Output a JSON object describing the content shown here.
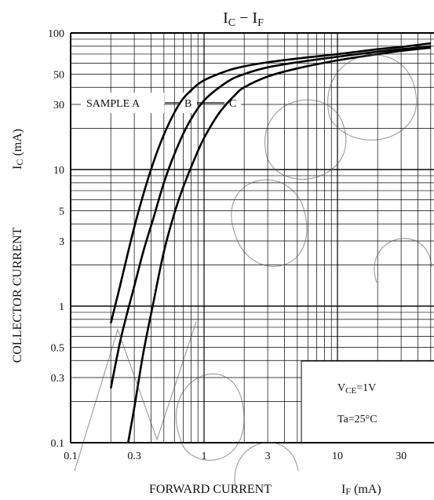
{
  "chart_data": {
    "type": "line",
    "title": "IC − IF",
    "title_parts": {
      "main1": "I",
      "sub1": "C",
      "sep": " − ",
      "main2": "I",
      "sub2": "F"
    },
    "xlabel": "FORWARD CURRENT",
    "xlabel_symbol": "I",
    "xlabel_sub": "F",
    "xlabel_unit": " (mA)",
    "ylabel": "COLLECTOR CURRENT",
    "ylabel_symbol": "I",
    "ylabel_sub": "C",
    "ylabel_unit": " (mA)",
    "x_scale": "log",
    "y_scale": "log",
    "xlim": [
      0.1,
      50
    ],
    "ylim": [
      0.1,
      100
    ],
    "x_ticks": [
      0.1,
      0.3,
      1,
      3,
      10,
      30
    ],
    "x_tick_labels": [
      "0.1",
      "0.3",
      "1",
      "3",
      "10",
      "30"
    ],
    "y_ticks": [
      0.1,
      0.3,
      0.5,
      1,
      3,
      5,
      10,
      30,
      50,
      100
    ],
    "y_tick_labels": [
      "0.1",
      "0.3",
      "0.5",
      "1",
      "3",
      "5",
      "10",
      "30",
      "50",
      "100"
    ],
    "grid": true,
    "series": [
      {
        "name": "A",
        "x": [
          0.2,
          0.23,
          0.27,
          0.32,
          0.4,
          0.5,
          0.65,
          0.8,
          1,
          1.5,
          2,
          3,
          5,
          10,
          20,
          30,
          50
        ],
        "values": [
          0.75,
          1.3,
          2.5,
          4.8,
          10,
          18,
          30,
          38,
          45,
          53,
          57,
          61,
          65,
          70,
          76,
          79,
          84
        ]
      },
      {
        "name": "B",
        "x": [
          0.2,
          0.24,
          0.3,
          0.35,
          0.42,
          0.5,
          0.6,
          0.75,
          1,
          1.5,
          2,
          3,
          5,
          10,
          20,
          30,
          50
        ],
        "values": [
          0.25,
          0.6,
          1.4,
          2.5,
          4.5,
          8,
          13,
          21,
          32,
          44,
          50,
          56,
          61,
          67,
          73,
          76,
          80
        ]
      },
      {
        "name": "C",
        "x": [
          0.27,
          0.3,
          0.35,
          0.42,
          0.5,
          0.6,
          0.7,
          0.85,
          1,
          1.3,
          1.7,
          2,
          3,
          5,
          10,
          20,
          30,
          50
        ],
        "values": [
          0.1,
          0.18,
          0.45,
          1.1,
          2.5,
          4.8,
          7.5,
          12,
          17,
          26,
          35,
          40,
          48,
          55,
          63,
          70,
          74,
          78
        ]
      }
    ],
    "annotations": {
      "sample_label": "SAMPLE A",
      "label_b": "B",
      "label_c": "C",
      "vce_symbol": "V",
      "vce_sub": "CE",
      "vce_value": "=1V",
      "ta": "Ta=25°C"
    }
  }
}
